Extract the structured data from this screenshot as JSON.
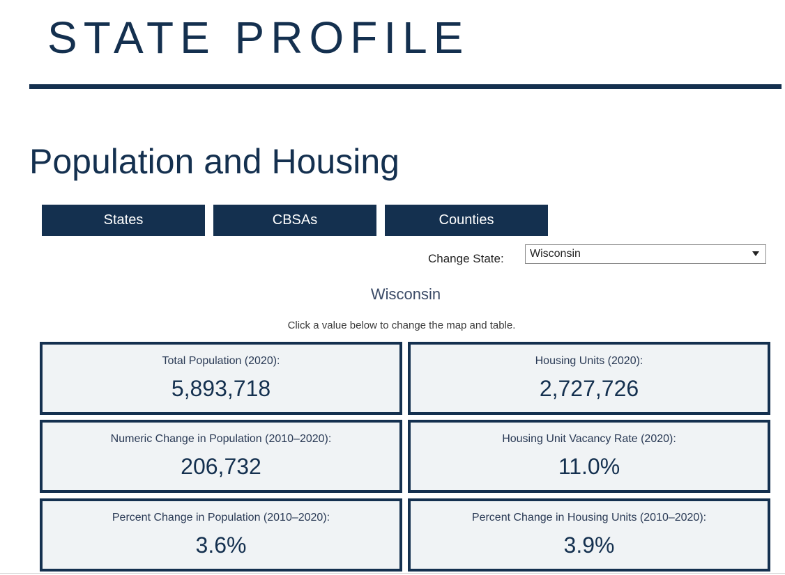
{
  "header": {
    "title": "STATE PROFILE"
  },
  "section": {
    "heading": "Population and Housing"
  },
  "tabs": [
    {
      "label": "States"
    },
    {
      "label": "CBSAs"
    },
    {
      "label": "Counties"
    }
  ],
  "state_selector": {
    "label": "Change State:",
    "selected": "Wisconsin"
  },
  "profile": {
    "state_name": "Wisconsin",
    "instructions": "Click a value below to change the map and table.",
    "cards": [
      {
        "label": "Total Population (2020):",
        "value": "5,893,718"
      },
      {
        "label": "Housing Units (2020):",
        "value": "2,727,726"
      },
      {
        "label": "Numeric Change in Population (2010–2020):",
        "value": "206,732"
      },
      {
        "label": "Housing Unit Vacancy Rate (2020):",
        "value": "11.0%"
      },
      {
        "label": "Percent Change in Population (2010–2020):",
        "value": "3.6%"
      },
      {
        "label": "Percent Change in Housing Units (2010–2020):",
        "value": "3.9%"
      }
    ]
  },
  "colors": {
    "navy": "#14304f",
    "card_bg": "#f0f3f5"
  }
}
